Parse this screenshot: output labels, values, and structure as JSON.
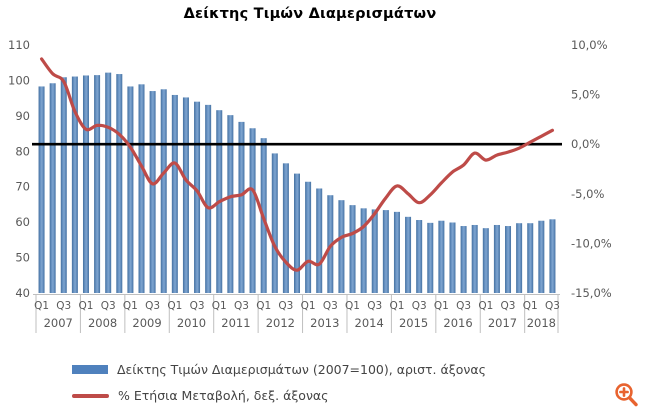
{
  "chart_data": {
    "type": "bar+line combo",
    "title": "Δείκτης Τιμών Διαμερισμάτων",
    "categories": [
      "2007 Q1",
      "2007 Q2",
      "2007 Q3",
      "2007 Q4",
      "2008 Q1",
      "2008 Q2",
      "2008 Q3",
      "2008 Q4",
      "2009 Q1",
      "2009 Q2",
      "2009 Q3",
      "2009 Q4",
      "2010 Q1",
      "2010 Q2",
      "2010 Q3",
      "2010 Q4",
      "2011 Q1",
      "2011 Q2",
      "2011 Q3",
      "2011 Q4",
      "2012 Q1",
      "2012 Q2",
      "2012 Q3",
      "2012 Q4",
      "2013 Q1",
      "2013 Q2",
      "2013 Q3",
      "2013 Q4",
      "2014 Q1",
      "2014 Q2",
      "2014 Q3",
      "2014 Q4",
      "2015 Q1",
      "2015 Q2",
      "2015 Q3",
      "2015 Q4",
      "2016 Q1",
      "2016 Q2",
      "2016 Q3",
      "2016 Q4",
      "2017 Q1",
      "2017 Q2",
      "2017 Q3",
      "2017 Q4",
      "2018 Q1",
      "2018 Q2",
      "2018 Q3"
    ],
    "series": [
      {
        "name": "Δείκτης Τιμών Διαμερισμάτων (2007=100), αριστ. άξονας",
        "type": "bar",
        "axis": "left",
        "color": "#4F81BD",
        "values": [
          98.3,
          99.2,
          100.9,
          101.1,
          101.4,
          101.5,
          102.2,
          101.8,
          98.3,
          98.9,
          97.0,
          97.5,
          95.9,
          95.2,
          94.0,
          93.1,
          91.6,
          90.2,
          88.3,
          86.5,
          83.7,
          79.4,
          76.6,
          73.7,
          71.4,
          69.5,
          67.6,
          66.2,
          64.8,
          63.9,
          63.6,
          63.4,
          62.9,
          61.5,
          60.6,
          59.8,
          60.4,
          59.9,
          58.9,
          59.2,
          58.3,
          59.2,
          58.9,
          59.7,
          59.7,
          60.4,
          60.8
        ]
      },
      {
        "name": "% Ετήσια Μεταβολή, δεξ. άξονας",
        "type": "line",
        "axis": "right",
        "color": "#BE4B48",
        "values": [
          8.6,
          7.1,
          6.3,
          3.3,
          1.5,
          1.9,
          1.7,
          1.0,
          -0.3,
          -2.2,
          -4.0,
          -2.9,
          -1.9,
          -3.6,
          -4.7,
          -6.4,
          -5.8,
          -5.3,
          -5.1,
          -4.6,
          -7.5,
          -10.3,
          -11.9,
          -12.7,
          -11.8,
          -12.1,
          -10.3,
          -9.4,
          -9.0,
          -8.3,
          -7.0,
          -5.4,
          -4.2,
          -5.0,
          -5.9,
          -5.1,
          -3.9,
          -2.8,
          -2.1,
          -0.9,
          -1.6,
          -1.1,
          -0.8,
          -0.4,
          0.2,
          0.8,
          1.4
        ]
      }
    ],
    "left_axis": {
      "min": 40,
      "max": 110,
      "ticks": [
        110,
        100,
        90,
        80,
        70,
        60,
        50,
        40
      ]
    },
    "right_axis": {
      "min": -15,
      "max": 10,
      "ticks": [
        {
          "value": 10,
          "label": "10,0%"
        },
        {
          "value": 5,
          "label": "5,0%"
        },
        {
          "value": 0,
          "label": "0,0%"
        },
        {
          "value": -5,
          "label": "-5,0%"
        },
        {
          "value": -10,
          "label": "-10,0%"
        },
        {
          "value": -15,
          "label": "-15,0%"
        }
      ]
    },
    "x_axis": {
      "quarter_tick_labels": [
        "Q1",
        "Q3"
      ],
      "years": [
        "2007",
        "2008",
        "2009",
        "2010",
        "2011",
        "2012",
        "2013",
        "2014",
        "2015",
        "2016",
        "2017",
        "2018"
      ]
    },
    "zero_line": {
      "right_axis_value": 0,
      "color": "#000000"
    },
    "grid": "off",
    "legend_position": "bottom-left"
  },
  "legend": {
    "items": [
      {
        "swatch": "bar-swatch",
        "label": "Δείκτης Τιμών Διαμερισμάτων (2007=100), αριστ. άξονας"
      },
      {
        "swatch": "line-swatch",
        "label": "% Ετήσια Μεταβολή, δεξ. άξονας"
      }
    ]
  },
  "icons": {
    "zoom_in": {
      "name": "magnifier-plus",
      "color": "#E8632F"
    }
  },
  "colors": {
    "bar": "#4F81BD",
    "line": "#BE4B48",
    "zero_line": "#000000",
    "axis_text": "#595959",
    "axis_line": "#BFBFBF",
    "title": "#000000"
  }
}
